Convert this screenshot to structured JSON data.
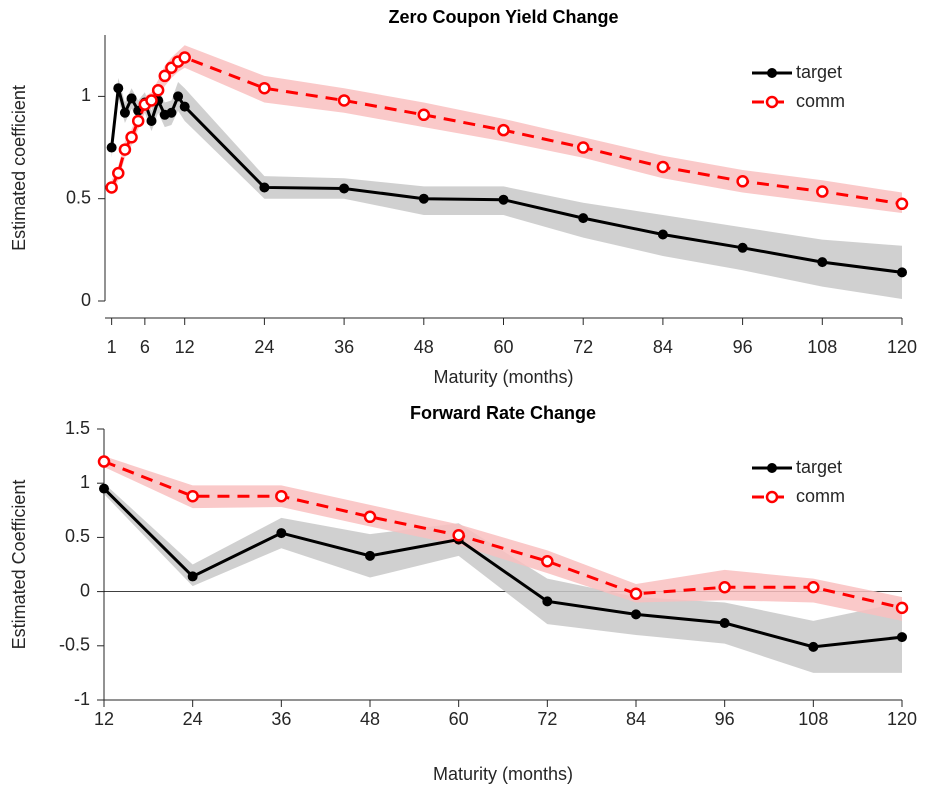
{
  "chart_data": [
    {
      "type": "line",
      "title": "Zero Coupon Yield Change",
      "x_label": "Maturity (months)",
      "y_label": "Estimated coefficient",
      "x": [
        1,
        2,
        3,
        4,
        5,
        6,
        7,
        8,
        9,
        10,
        11,
        12,
        24,
        36,
        48,
        60,
        72,
        84,
        96,
        108,
        120
      ],
      "xlim": [
        0,
        120
      ],
      "xticks": [
        1,
        6,
        12,
        24,
        36,
        48,
        60,
        72,
        84,
        96,
        108,
        120
      ],
      "ylim": [
        0,
        1.3
      ],
      "yticks": [
        0,
        0.5,
        1
      ],
      "zero_line": false,
      "legend": "upper right",
      "series": [
        {
          "name": "target",
          "color": "#000000",
          "band_color": "#c8c8c8",
          "line_style": "solid",
          "marker": "filled",
          "values": [
            0.75,
            1.04,
            0.92,
            0.99,
            0.93,
            0.97,
            0.88,
            0.98,
            0.91,
            0.92,
            1.0,
            0.95,
            0.555,
            0.55,
            0.5,
            0.495,
            0.405,
            0.325,
            0.26,
            0.19,
            0.14
          ],
          "lower": [
            0.7,
            0.99,
            0.87,
            0.94,
            0.88,
            0.92,
            0.83,
            0.92,
            0.85,
            0.86,
            0.93,
            0.88,
            0.5,
            0.5,
            0.42,
            0.42,
            0.31,
            0.22,
            0.15,
            0.07,
            0.01
          ],
          "upper": [
            0.8,
            1.09,
            0.97,
            1.04,
            0.98,
            1.02,
            0.93,
            1.04,
            0.97,
            0.98,
            1.07,
            1.04,
            0.61,
            0.6,
            0.56,
            0.56,
            0.48,
            0.42,
            0.36,
            0.3,
            0.27
          ]
        },
        {
          "name": "comm",
          "color": "#ff0000",
          "band_color": "#f9c0c0",
          "line_style": "dashed",
          "marker": "open",
          "values": [
            0.555,
            0.625,
            0.74,
            0.8,
            0.88,
            0.96,
            0.98,
            1.03,
            1.1,
            1.14,
            1.17,
            1.19,
            1.04,
            0.98,
            0.91,
            0.835,
            0.75,
            0.655,
            0.585,
            0.535,
            0.475
          ],
          "lower": [
            0.52,
            0.59,
            0.7,
            0.76,
            0.84,
            0.92,
            0.94,
            0.98,
            1.05,
            1.09,
            1.12,
            1.14,
            0.97,
            0.92,
            0.85,
            0.78,
            0.7,
            0.6,
            0.53,
            0.48,
            0.43
          ],
          "upper": [
            0.59,
            0.66,
            0.78,
            0.84,
            0.92,
            1.0,
            1.02,
            1.08,
            1.15,
            1.19,
            1.22,
            1.25,
            1.1,
            1.04,
            0.97,
            0.89,
            0.8,
            0.71,
            0.64,
            0.59,
            0.53
          ]
        }
      ]
    },
    {
      "type": "line",
      "title": "Forward Rate Change",
      "x_label": "Maturity (months)",
      "y_label": "Estimated Coefficient",
      "x": [
        12,
        24,
        36,
        48,
        60,
        72,
        84,
        96,
        108,
        120
      ],
      "xlim": [
        12,
        120
      ],
      "xticks": [
        12,
        24,
        36,
        48,
        60,
        72,
        84,
        96,
        108,
        120
      ],
      "ylim": [
        -1,
        1.5
      ],
      "yticks": [
        -1,
        -0.5,
        0,
        0.5,
        1,
        1.5
      ],
      "zero_line": true,
      "legend": "upper right",
      "series": [
        {
          "name": "target",
          "color": "#000000",
          "band_color": "#c8c8c8",
          "line_style": "solid",
          "marker": "filled",
          "values": [
            0.95,
            0.14,
            0.54,
            0.33,
            0.48,
            -0.09,
            -0.21,
            -0.29,
            -0.51,
            -0.42
          ],
          "lower": [
            0.9,
            0.05,
            0.4,
            0.13,
            0.33,
            -0.3,
            -0.4,
            -0.48,
            -0.75,
            -0.75
          ],
          "upper": [
            1.0,
            0.25,
            0.68,
            0.53,
            0.63,
            0.12,
            -0.05,
            -0.1,
            -0.27,
            -0.1
          ]
        },
        {
          "name": "comm",
          "color": "#ff0000",
          "band_color": "#f9c0c0",
          "line_style": "dashed",
          "marker": "open",
          "values": [
            1.2,
            0.88,
            0.88,
            0.69,
            0.52,
            0.28,
            -0.02,
            0.04,
            0.04,
            -0.15
          ],
          "lower": [
            1.15,
            0.77,
            0.78,
            0.6,
            0.43,
            0.17,
            -0.1,
            -0.08,
            -0.1,
            -0.27
          ],
          "upper": [
            1.25,
            0.98,
            0.98,
            0.8,
            0.62,
            0.38,
            0.07,
            0.2,
            0.12,
            -0.05
          ]
        }
      ]
    }
  ]
}
